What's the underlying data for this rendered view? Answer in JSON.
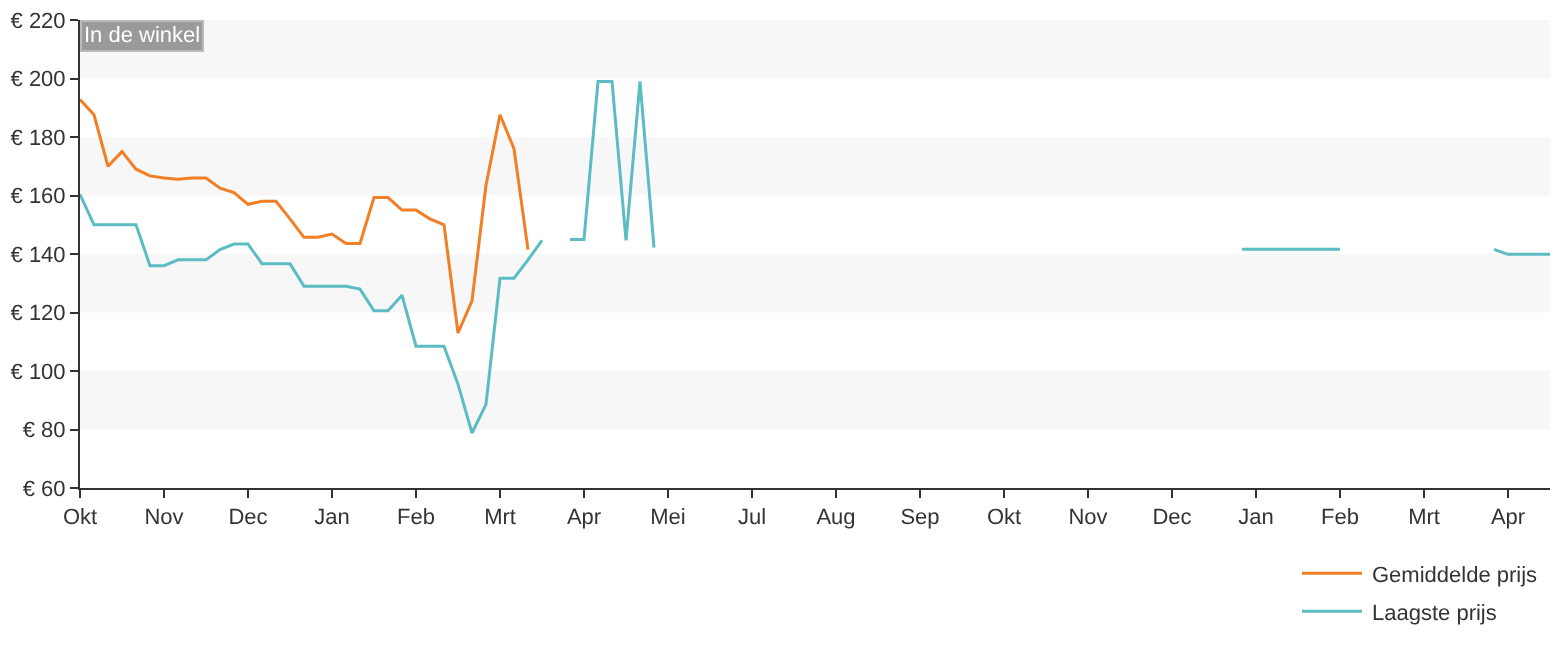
{
  "chart_data": {
    "type": "line",
    "annotations": [
      "In de winkel"
    ],
    "categories": [
      "Okt",
      null,
      null,
      null,
      null,
      null,
      "Nov",
      null,
      null,
      null,
      null,
      null,
      "Dec",
      null,
      null,
      null,
      null,
      null,
      "Jan",
      null,
      null,
      null,
      null,
      null,
      "Feb",
      null,
      null,
      null,
      null,
      null,
      "Mrt",
      null,
      null,
      null,
      null,
      null,
      "Apr",
      null,
      null,
      null,
      null,
      null,
      "Mei",
      null,
      null,
      null,
      null,
      null,
      "Jul",
      null,
      null,
      null,
      null,
      null,
      "Aug",
      null,
      null,
      null,
      null,
      null,
      "Sep",
      null,
      null,
      null,
      null,
      null,
      "Okt",
      null,
      null,
      null,
      null,
      null,
      "Nov",
      null,
      null,
      null,
      null,
      null,
      "Dec",
      null,
      null,
      null,
      null,
      null,
      "Jan",
      null,
      null,
      null,
      null,
      null,
      "Feb",
      null,
      null,
      null,
      null,
      null,
      "Mrt",
      null,
      null,
      null,
      null,
      null,
      "Apr",
      null,
      null,
      null
    ],
    "ylim": [
      60,
      220
    ],
    "yticks": [
      {
        "value": 60,
        "label": "€ 60"
      },
      {
        "value": 80,
        "label": "€ 80"
      },
      {
        "value": 100,
        "label": "€ 100"
      },
      {
        "value": 120,
        "label": "€ 120"
      },
      {
        "value": 140,
        "label": "€ 140"
      },
      {
        "value": 160,
        "label": "€ 160"
      },
      {
        "value": 180,
        "label": "€ 180"
      },
      {
        "value": 200,
        "label": "€ 200"
      },
      {
        "value": 220,
        "label": "€ 220"
      }
    ],
    "bands": [
      {
        "axis": "y",
        "from": 80,
        "to": 100,
        "color": "#f7f7f7"
      },
      {
        "axis": "y",
        "from": 120,
        "to": 140,
        "color": "#f7f7f7"
      },
      {
        "axis": "y",
        "from": 160,
        "to": 180,
        "color": "#f7f7f7"
      },
      {
        "axis": "y",
        "from": 200,
        "to": 220,
        "color": "#f7f7f7"
      }
    ],
    "grid": false,
    "legend": "bottom right",
    "marker": "none",
    "line_style": "solid",
    "series": [
      {
        "name": "Gemiddelde prijs",
        "color": "#f07f26",
        "values": [
          192.8,
          187.6,
          170,
          175,
          169,
          166.7,
          166,
          165.6,
          166,
          166,
          162.5,
          161,
          157,
          158,
          158,
          152,
          145.7,
          145.7,
          146.8,
          143.6,
          143.6,
          159.3,
          159.3,
          155,
          155,
          152,
          150,
          113,
          124,
          163.5,
          187.6,
          176,
          141.5,
          null,
          null,
          null,
          null,
          null,
          null,
          null,
          null,
          null,
          null,
          null,
          null,
          null,
          null,
          null,
          null,
          null,
          null,
          null,
          null,
          null,
          null,
          null,
          null,
          null,
          null,
          null,
          null,
          null,
          null,
          null,
          null,
          null,
          null,
          null,
          null,
          null,
          null,
          null,
          null,
          null,
          null,
          null,
          null,
          null,
          null,
          null,
          null,
          null,
          null,
          null,
          null,
          null,
          null,
          null,
          null,
          null,
          null,
          null,
          null,
          null,
          null,
          null,
          null,
          null,
          null,
          null,
          null,
          null,
          null,
          null,
          null,
          null
        ]
      },
      {
        "name": "Laagste prijs",
        "color": "#5bbcc4",
        "values": [
          160.4,
          150,
          150,
          150,
          150,
          136,
          136,
          138,
          138,
          138,
          141.5,
          143.4,
          143.4,
          136.7,
          136.7,
          136.7,
          129,
          129,
          129,
          129,
          128,
          120.6,
          120.6,
          125.9,
          108.5,
          108.5,
          108.5,
          95.5,
          78.8,
          88.6,
          131.7,
          131.7,
          138,
          144.7,
          null,
          145,
          145,
          199,
          199,
          144.7,
          199,
          142.2,
          null,
          null,
          null,
          null,
          null,
          null,
          null,
          null,
          null,
          null,
          null,
          null,
          null,
          null,
          null,
          null,
          null,
          null,
          null,
          null,
          null,
          null,
          null,
          null,
          null,
          null,
          null,
          null,
          null,
          null,
          null,
          null,
          null,
          null,
          null,
          null,
          null,
          null,
          null,
          null,
          null,
          141.6,
          141.6,
          141.6,
          141.6,
          141.6,
          141.6,
          141.6,
          141.6,
          null,
          null,
          null,
          null,
          null,
          null,
          null,
          null,
          null,
          null,
          141.6,
          139.9,
          139.9,
          139.9,
          139.9
        ]
      }
    ]
  }
}
